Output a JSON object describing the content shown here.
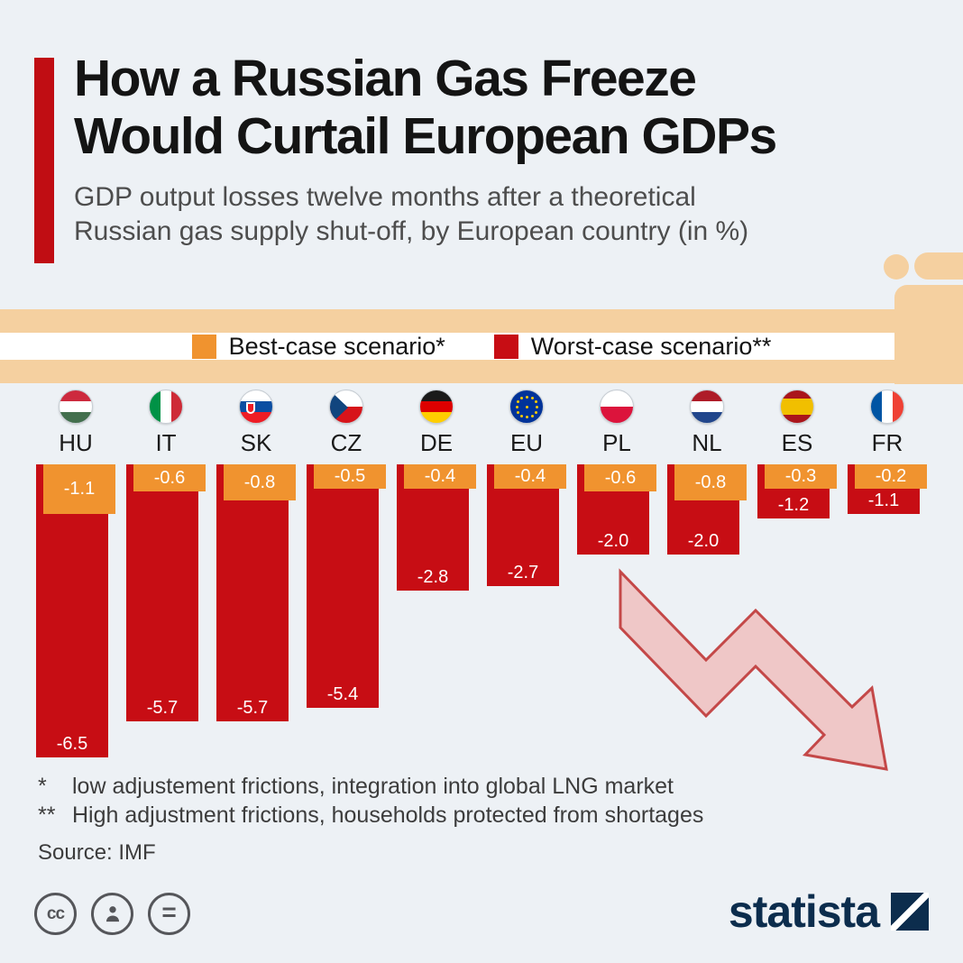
{
  "header": {
    "title_lines": [
      "How a Russian Gas Freeze",
      "Would Curtail European GDPs"
    ],
    "subtitle_lines": [
      "GDP output losses twelve months after a theoretical",
      "Russian gas supply shut-off, by European country (in %)"
    ]
  },
  "legend": {
    "best_label": "Best-case scenario*",
    "worst_label": "Worst-case scenario**"
  },
  "chart_data": {
    "type": "bar",
    "title": "How a Russian Gas Freeze Would Curtail European GDPs",
    "subtitle": "GDP output losses twelve months after a theoretical Russian gas supply shut-off, by European country (in %)",
    "orientation": "vertical-negative",
    "unit": "% of GDP",
    "categories": [
      "HU",
      "IT",
      "SK",
      "CZ",
      "DE",
      "EU",
      "PL",
      "NL",
      "ES",
      "FR"
    ],
    "flags": [
      "hu",
      "it",
      "sk",
      "cz",
      "de",
      "eu",
      "pl",
      "nl",
      "es",
      "fr"
    ],
    "series": [
      {
        "name": "Best-case scenario*",
        "color": "#f0932f",
        "values": [
          -1.1,
          -0.6,
          -0.8,
          -0.5,
          -0.4,
          -0.4,
          -0.6,
          -0.8,
          -0.3,
          -0.2
        ]
      },
      {
        "name": "Worst-case scenario**",
        "color": "#c70d14",
        "values": [
          -6.5,
          -5.7,
          -5.7,
          -5.4,
          -2.8,
          -2.7,
          -2.0,
          -2.0,
          -1.2,
          -1.1
        ]
      }
    ],
    "ylim": [
      -6.5,
      0
    ],
    "grid": false,
    "legend_position": "top-center",
    "value_labels_shown": true
  },
  "footnotes": {
    "items": [
      {
        "marker": "*",
        "text": "low adjustement frictions, integration into global LNG market"
      },
      {
        "marker": "**",
        "text": "High adjustment frictions, households protected from shortages"
      }
    ],
    "source": "Source: IMF"
  },
  "footer": {
    "license_icons": [
      "cc",
      "attribution",
      "equal"
    ],
    "brand": "statista"
  },
  "colors": {
    "best": "#f0932f",
    "worst": "#c70d14",
    "accent_bar": "#c00d13",
    "pipe": "#f5d0a0",
    "background": "#edf1f5",
    "brand_navy": "#0c2d4d"
  }
}
